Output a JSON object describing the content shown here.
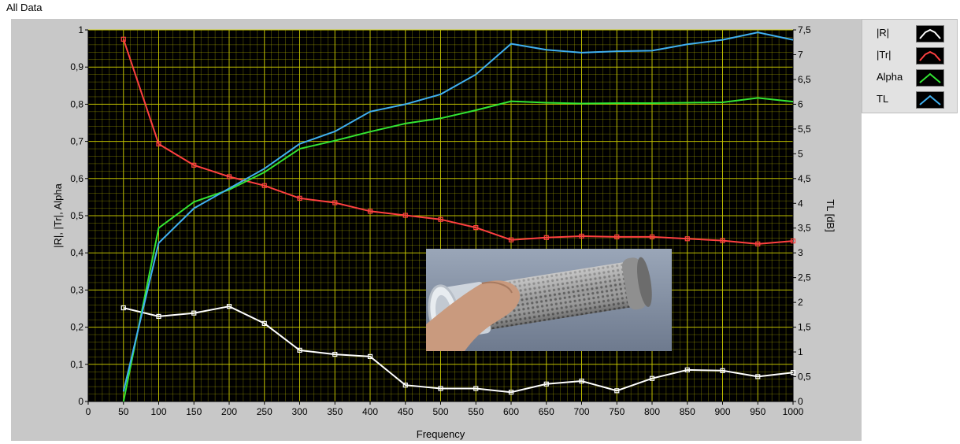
{
  "window_title": "All Data",
  "legend": [
    {
      "label": "|R|",
      "color": "#ffffff"
    },
    {
      "label": "|Tr|",
      "color": "#ff4040"
    },
    {
      "label": "Alpha",
      "color": "#33e633"
    },
    {
      "label": "TL",
      "color": "#40b0f0"
    }
  ],
  "inset_photo": {
    "icon": "perforated-tube-sample-photo"
  },
  "chart_data": {
    "type": "line",
    "xlabel": "Frequency",
    "ylabel": "|R|, |Tr|, Alpha",
    "y2label": "TL [dB]",
    "xlim": [
      0,
      1000
    ],
    "ylim": [
      0,
      1
    ],
    "y2lim": [
      0,
      7.5
    ],
    "grid": true,
    "legend_position": "right",
    "plot_background": "#000000",
    "grid_color": "#c8c800",
    "x_ticks": [
      "0",
      "50",
      "100",
      "150",
      "200",
      "250",
      "300",
      "350",
      "400",
      "450",
      "500",
      "550",
      "600",
      "650",
      "700",
      "750",
      "800",
      "850",
      "900",
      "950",
      "1000"
    ],
    "y_ticks": [
      "0",
      "0,1",
      "0,2",
      "0,3",
      "0,4",
      "0,5",
      "0,6",
      "0,7",
      "0,8",
      "0,9",
      "1"
    ],
    "y2_ticks": [
      "0",
      "0,5",
      "1",
      "1,5",
      "2",
      "2,5",
      "3",
      "3,5",
      "4",
      "4,5",
      "5",
      "5,5",
      "6",
      "6,5",
      "7",
      "7,5"
    ],
    "x": [
      50,
      100,
      150,
      200,
      250,
      300,
      350,
      400,
      450,
      500,
      550,
      600,
      650,
      700,
      750,
      800,
      850,
      900,
      950,
      1000
    ],
    "series": [
      {
        "name": "|R|",
        "axis": "left",
        "color": "#ffffff",
        "markers": true,
        "values": [
          0.252,
          0.229,
          0.238,
          0.256,
          0.21,
          0.138,
          0.127,
          0.121,
          0.044,
          0.035,
          0.035,
          0.025,
          0.047,
          0.055,
          0.029,
          0.062,
          0.085,
          0.083,
          0.067,
          0.078
        ]
      },
      {
        "name": "|Tr|",
        "axis": "left",
        "color": "#ff4040",
        "markers": true,
        "values": [
          0.975,
          0.693,
          0.636,
          0.605,
          0.581,
          0.547,
          0.535,
          0.512,
          0.501,
          0.49,
          0.468,
          0.435,
          0.441,
          0.445,
          0.443,
          0.443,
          0.438,
          0.433,
          0.424,
          0.432
        ]
      },
      {
        "name": "Alpha",
        "axis": "left",
        "color": "#33e633",
        "markers": false,
        "values": [
          0.0,
          0.467,
          0.537,
          0.57,
          0.617,
          0.68,
          0.702,
          0.726,
          0.748,
          0.762,
          0.784,
          0.808,
          0.804,
          0.802,
          0.803,
          0.803,
          0.804,
          0.805,
          0.817,
          0.807
        ]
      },
      {
        "name": "TL",
        "axis": "right",
        "color": "#40b0f0",
        "markers": false,
        "values": [
          0.2,
          3.2,
          3.9,
          4.3,
          4.7,
          5.2,
          5.45,
          5.85,
          6.0,
          6.2,
          6.6,
          7.22,
          7.1,
          7.04,
          7.07,
          7.08,
          7.21,
          7.3,
          7.45,
          7.3
        ]
      }
    ]
  }
}
